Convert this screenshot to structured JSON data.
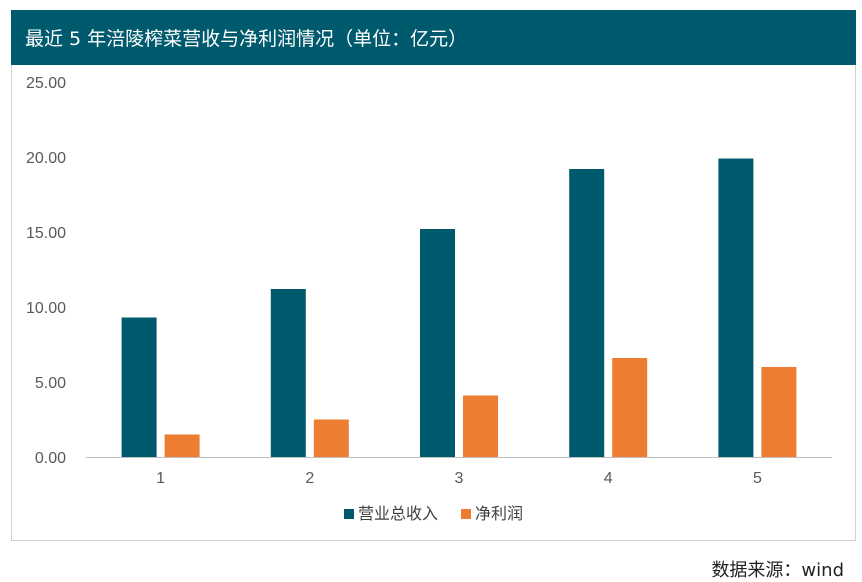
{
  "header": {
    "title": "最近 5 年涪陵榨菜营收与净利润情况（单位：亿元）"
  },
  "source": "数据来源：wind",
  "chart_data": {
    "type": "bar",
    "title": "最近 5 年涪陵榨菜营收与净利润情况（单位：亿元）",
    "categories": [
      "1",
      "2",
      "3",
      "4",
      "5"
    ],
    "series": [
      {
        "name": "营业总收入",
        "color": "#005a6e",
        "values": [
          9.3,
          11.2,
          15.2,
          19.2,
          19.9
        ]
      },
      {
        "name": "净利润",
        "color": "#ed7d31",
        "values": [
          1.5,
          2.5,
          4.1,
          6.6,
          6.0
        ]
      }
    ],
    "yticks": [
      "0.00",
      "5.00",
      "10.00",
      "15.00",
      "20.00",
      "25.00"
    ],
    "ylim": [
      0,
      25
    ],
    "legend_position": "bottom",
    "grid": false
  }
}
